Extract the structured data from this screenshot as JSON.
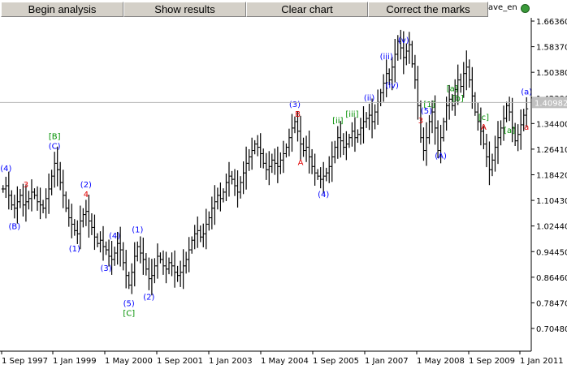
{
  "toolbar": {
    "begin_label": "Begin analysis",
    "show_label": "Show results",
    "clear_label": "Clear chart",
    "correct_label": "Correct the marks"
  },
  "expert": {
    "name": "ave_en",
    "icon": "smiley-icon",
    "status_color": "#3a9a3a"
  },
  "chart_data": {
    "type": "bar",
    "style": "OHLC bars",
    "y_ticks": [
      "1.66360",
      "1.58370",
      "1.50380",
      "1.42390",
      "1.34400",
      "1.26410",
      "1.18420",
      "1.10430",
      "1.02440",
      "0.94450",
      "0.86460",
      "0.78470",
      "0.70480"
    ],
    "x_ticks": [
      "1 Sep 1997",
      "1 Jan 1999",
      "1 May 2000",
      "1 Sep 2001",
      "1 Jan 2003",
      "1 May 2004",
      "1 Sep 2005",
      "1 Jan 2007",
      "1 May 2008",
      "1 Sep 2009",
      "1 Jan 2011"
    ],
    "current_price": "1.40982",
    "ylim": [
      0.66,
      1.7
    ],
    "close_series": [
      1.14,
      1.15,
      1.12,
      1.09,
      1.08,
      1.1,
      1.12,
      1.09,
      1.1,
      1.11,
      1.13,
      1.12,
      1.1,
      1.09,
      1.08,
      1.11,
      1.14,
      1.18,
      1.22,
      1.2,
      1.16,
      1.12,
      1.08,
      1.05,
      1.03,
      1.01,
      1.0,
      1.04,
      1.06,
      1.07,
      1.04,
      1.02,
      0.99,
      0.97,
      0.98,
      0.96,
      0.95,
      0.93,
      0.92,
      0.94,
      0.97,
      0.95,
      0.91,
      0.87,
      0.84,
      0.88,
      0.93,
      0.96,
      0.94,
      0.92,
      0.89,
      0.86,
      0.87,
      0.9,
      0.93,
      0.92,
      0.9,
      0.89,
      0.91,
      0.9,
      0.88,
      0.87,
      0.88,
      0.9,
      0.92,
      0.95,
      0.98,
      1.0,
      1.01,
      0.99,
      1.0,
      1.03,
      1.05,
      1.08,
      1.1,
      1.12,
      1.11,
      1.13,
      1.16,
      1.18,
      1.17,
      1.15,
      1.13,
      1.16,
      1.19,
      1.22,
      1.24,
      1.26,
      1.28,
      1.27,
      1.25,
      1.22,
      1.2,
      1.21,
      1.23,
      1.22,
      1.21,
      1.23,
      1.25,
      1.27,
      1.3,
      1.33,
      1.35,
      1.32,
      1.28,
      1.26,
      1.27,
      1.24,
      1.21,
      1.19,
      1.18,
      1.17,
      1.18,
      1.19,
      1.21,
      1.24,
      1.27,
      1.3,
      1.29,
      1.27,
      1.28,
      1.3,
      1.32,
      1.3,
      1.31,
      1.33,
      1.35,
      1.36,
      1.37,
      1.35,
      1.38,
      1.41,
      1.44,
      1.47,
      1.5,
      1.48,
      1.52,
      1.56,
      1.6,
      1.58,
      1.55,
      1.57,
      1.59,
      1.53,
      1.48,
      1.4,
      1.3,
      1.26,
      1.3,
      1.35,
      1.38,
      1.33,
      1.26,
      1.3,
      1.35,
      1.4,
      1.42,
      1.4,
      1.45,
      1.48,
      1.46,
      1.5,
      1.52,
      1.48,
      1.43,
      1.38,
      1.35,
      1.32,
      1.28,
      1.24,
      1.2,
      1.23,
      1.27,
      1.3,
      1.33,
      1.36,
      1.4,
      1.38,
      1.33,
      1.29,
      1.31,
      1.34,
      1.37,
      1.39
    ],
    "marks": [
      {
        "text": "(4)",
        "color": "#0000ff",
        "bar": 1,
        "side": "above"
      },
      {
        "text": "3",
        "color": "#e00000",
        "bar": 8,
        "side": "above"
      },
      {
        "text": "(B)",
        "color": "#0000ff",
        "bar": 4,
        "side": "below"
      },
      {
        "text": "(C)",
        "color": "#0000ff",
        "bar": 18,
        "side": "above"
      },
      {
        "text": "[B]",
        "color": "#009000",
        "bar": 18,
        "side": "above2"
      },
      {
        "text": "4",
        "color": "#e00000",
        "bar": 29,
        "side": "above"
      },
      {
        "text": "(2)",
        "color": "#0000ff",
        "bar": 29,
        "side": "above2"
      },
      {
        "text": "(1)",
        "color": "#0000ff",
        "bar": 25,
        "side": "below"
      },
      {
        "text": "(4)",
        "color": "#0000ff",
        "bar": 39,
        "side": "above"
      },
      {
        "text": "(3)",
        "color": "#0000ff",
        "bar": 36,
        "side": "below"
      },
      {
        "text": "(5)",
        "color": "#0000ff",
        "bar": 44,
        "side": "below"
      },
      {
        "text": "[C]",
        "color": "#009000",
        "bar": 44,
        "side": "below2"
      },
      {
        "text": "(1)",
        "color": "#0000ff",
        "bar": 47,
        "side": "above"
      },
      {
        "text": "(2)",
        "color": "#0000ff",
        "bar": 51,
        "side": "below"
      },
      {
        "text": "(3)",
        "color": "#0000ff",
        "bar": 102,
        "side": "above"
      },
      {
        "text": "B",
        "color": "#e00000",
        "bar": 103,
        "side": "above"
      },
      {
        "text": "A",
        "color": "#e00000",
        "bar": 104,
        "side": "below"
      },
      {
        "text": "(4)",
        "color": "#0000ff",
        "bar": 112,
        "side": "below"
      },
      {
        "text": "[ii]",
        "color": "#009000",
        "bar": 117,
        "side": "above"
      },
      {
        "text": "[iii]",
        "color": "#009000",
        "bar": 122,
        "side": "above"
      },
      {
        "text": "(ii)",
        "color": "#0000ff",
        "bar": 128,
        "side": "above"
      },
      {
        "text": "(iii)",
        "color": "#0000ff",
        "bar": 134,
        "side": "above"
      },
      {
        "text": "(iv)",
        "color": "#0000ff",
        "bar": 136,
        "side": "below"
      },
      {
        "text": "(v)",
        "color": "#0000ff",
        "bar": 140,
        "side": "above"
      },
      {
        "text": "[1]",
        "color": "#009000",
        "bar": 149,
        "side": "above"
      },
      {
        "text": "(5)",
        "color": "#0000ff",
        "bar": 148,
        "side": "above2"
      },
      {
        "text": "3",
        "color": "#e00000",
        "bar": 146,
        "side": "above"
      },
      {
        "text": "(A)",
        "color": "#0000ff",
        "bar": 153,
        "side": "below"
      },
      {
        "text": "[a]",
        "color": "#009000",
        "bar": 157,
        "side": "above"
      },
      {
        "text": "[b]",
        "color": "#009000",
        "bar": 159,
        "side": "below"
      },
      {
        "text": "A",
        "color": "#e00000",
        "bar": 168,
        "side": "above"
      },
      {
        "text": "[c]",
        "color": "#009000",
        "bar": 168,
        "side": "above2"
      },
      {
        "text": "[a]",
        "color": "#009000",
        "bar": 177,
        "side": "below"
      },
      {
        "text": "(a)",
        "color": "#0000ff",
        "bar": 183,
        "side": "above"
      },
      {
        "text": "a",
        "color": "#e00000",
        "bar": 185,
        "side": "below"
      }
    ]
  }
}
